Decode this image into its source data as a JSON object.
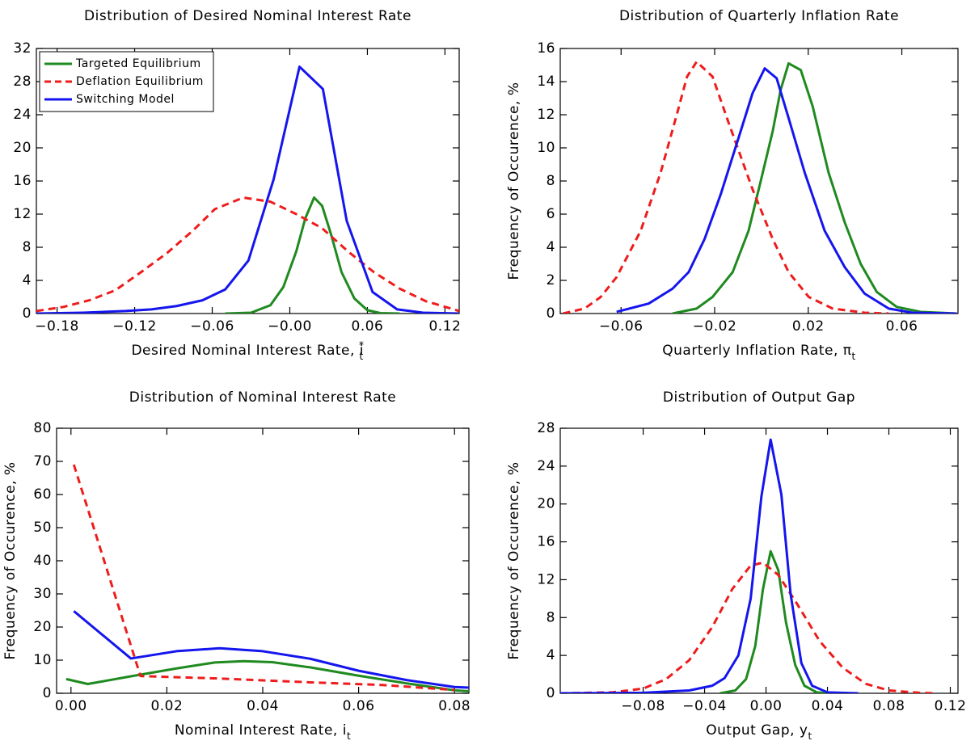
{
  "chart_data": [
    {
      "type": "line",
      "title": "Distribution of Desired Nominal Interest Rate",
      "xlabel": {
        "text": "Desired Nominal Interest Rate, i",
        "sup": "*",
        "sub": "t"
      },
      "xlim": [
        -0.196,
        0.131
      ],
      "xticks": [
        {
          "value": -0.18,
          "label": "−0.18"
        },
        {
          "value": -0.12,
          "label": "−0.12"
        },
        {
          "value": -0.06,
          "label": "−0.06"
        },
        {
          "value": 0,
          "label": "−0.00"
        },
        0.06,
        0.12
      ],
      "ylim": [
        0,
        32
      ],
      "yticks": [
        0,
        4,
        8,
        12,
        16,
        20,
        24,
        28,
        32
      ],
      "legend": "upper left",
      "grid": false,
      "series": [
        {
          "name": "Targeted Equilibrium",
          "color": "#1f8a1f",
          "dash": false,
          "x": [
            -0.05,
            -0.03,
            -0.015,
            -0.005,
            0.005,
            0.012,
            0.0188,
            0.025,
            0.032,
            0.04,
            0.05,
            0.06,
            0.07,
            0.085
          ],
          "values": [
            0,
            0.1,
            1,
            3.2,
            7.5,
            11.5,
            14,
            13,
            9.5,
            5,
            1.8,
            0.4,
            0.05,
            0
          ]
        },
        {
          "name": "Deflation Equilibrium",
          "color": "#ee1c1c",
          "dash": true,
          "x": [
            -0.196,
            -0.175,
            -0.155,
            -0.135,
            -0.115,
            -0.095,
            -0.075,
            -0.058,
            -0.036,
            -0.015,
            0.005,
            0.025,
            0.045,
            0.065,
            0.085,
            0.105,
            0.131
          ],
          "values": [
            0.3,
            0.8,
            1.6,
            2.8,
            5,
            7.3,
            10,
            12.6,
            14,
            13.5,
            12,
            10.3,
            7.5,
            5,
            3,
            1.5,
            0.3
          ]
        },
        {
          "name": "Switching Model",
          "color": "#1515ee",
          "dash": false,
          "x": [
            -0.196,
            -0.16,
            -0.127,
            -0.107,
            -0.0875,
            -0.0675,
            -0.05,
            -0.032,
            -0.0125,
            0.0075,
            0.0256,
            0.044,
            0.064,
            0.083,
            0.103,
            0.131
          ],
          "values": [
            0,
            0.1,
            0.3,
            0.5,
            0.9,
            1.6,
            2.9,
            6.4,
            16.2,
            29.8,
            27.1,
            11.2,
            2.6,
            0.5,
            0.1,
            0
          ]
        }
      ]
    },
    {
      "type": "line",
      "title": "Distribution of Quarterly Inflation Rate",
      "xlabel": {
        "text": "Quarterly Inflation Rate, π",
        "sub": "t"
      },
      "ylabel": "Frequency of Occurence, %",
      "xlim": [
        -0.086,
        0.084
      ],
      "xticks": [
        {
          "value": -0.06,
          "label": "−0.06"
        },
        {
          "value": -0.02,
          "label": "−0.02"
        },
        0.02,
        0.06
      ],
      "ylim": [
        0,
        16
      ],
      "yticks": [
        0,
        2,
        4,
        6,
        8,
        10,
        12,
        14,
        16
      ],
      "grid": false,
      "series": [
        {
          "color": "#1f8a1f",
          "dash": false,
          "x": [
            -0.038,
            -0.0277,
            -0.0209,
            -0.0123,
            -0.0055,
            -0.0003,
            0.0048,
            0.0082,
            0.0116,
            0.0168,
            0.0219,
            0.0287,
            0.0356,
            0.0424,
            0.0493,
            0.0578,
            0.068,
            0.0834
          ],
          "values": [
            0,
            0.3,
            1,
            2.5,
            5,
            8,
            11,
            13.5,
            15.1,
            14.7,
            12.5,
            8.5,
            5.5,
            3,
            1.3,
            0.4,
            0.1,
            0
          ]
        },
        {
          "color": "#ee1c1c",
          "dash": true,
          "x": [
            -0.0848,
            -0.0756,
            -0.0687,
            -0.0619,
            -0.0516,
            -0.0431,
            -0.0362,
            -0.0318,
            -0.0277,
            -0.0209,
            -0.014,
            -0.0038,
            0.0048,
            0.0116,
            0.0202,
            0.0304,
            0.0441,
            0.0544
          ],
          "values": [
            0,
            0.3,
            1,
            2.2,
            5,
            8.5,
            12,
            14.3,
            15.2,
            14.3,
            11.5,
            7.5,
            4.5,
            2.5,
            1,
            0.3,
            0.05,
            0
          ]
        },
        {
          "color": "#1515ee",
          "dash": false,
          "x": [
            -0.0619,
            -0.0482,
            -0.038,
            -0.0311,
            -0.0243,
            -0.0174,
            -0.0089,
            -0.0038,
            0.0014,
            0.0065,
            0.0116,
            0.0185,
            0.027,
            0.0356,
            0.0441,
            0.0544,
            0.0646,
            0.0834
          ],
          "values": [
            0.1,
            0.6,
            1.5,
            2.5,
            4.5,
            7.2,
            11,
            13.3,
            14.8,
            14.2,
            11.8,
            8.5,
            5,
            2.8,
            1.2,
            0.3,
            0.05,
            0
          ]
        }
      ]
    },
    {
      "type": "line",
      "title": "Distribution of Nominal Interest Rate",
      "xlabel": {
        "text": "Nominal Interest Rate, i",
        "sub": "t"
      },
      "ylabel": "Frequency of Occurence, %",
      "xlim": [
        -0.003,
        0.083
      ],
      "xticks": [
        {
          "value": 0,
          "label": "0.00"
        },
        0.02,
        0.04,
        0.06,
        0.08
      ],
      "ylim": [
        0,
        80
      ],
      "yticks": [
        0,
        10,
        20,
        30,
        40,
        50,
        60,
        70,
        80
      ],
      "grid": false,
      "series": [
        {
          "color": "#1f8a1f",
          "dash": false,
          "x": [
            -0.001,
            0.0035,
            0.012,
            0.022,
            0.03,
            0.036,
            0.042,
            0.05,
            0.06,
            0.07,
            0.08,
            0.083
          ],
          "values": [
            4.3,
            2.8,
            5,
            7.5,
            9.3,
            9.7,
            9.4,
            7.8,
            5.3,
            3,
            0.9,
            0.6
          ]
        },
        {
          "color": "#ee1c1c",
          "dash": true,
          "x": [
            0.0006,
            0.0145,
            0.03,
            0.05,
            0.065,
            0.08
          ],
          "values": [
            69,
            5.2,
            4.5,
            3.3,
            2.5,
            1
          ]
        },
        {
          "color": "#1515ee",
          "dash": false,
          "x": [
            0.0006,
            0.0125,
            0.022,
            0.031,
            0.04,
            0.05,
            0.06,
            0.07,
            0.08,
            0.083
          ],
          "values": [
            24.8,
            10.5,
            12.7,
            13.6,
            12.7,
            10.4,
            6.8,
            4,
            1.9,
            1.7
          ]
        }
      ]
    },
    {
      "type": "line",
      "title": "Distribution of Output Gap",
      "xlabel": {
        "text": "Output Gap, y",
        "sub": "t"
      },
      "ylabel": "Frequency of Occurence, %",
      "xlim": [
        -0.134,
        0.125
      ],
      "xticks": [
        {
          "value": -0.08,
          "label": "−0.08"
        },
        {
          "value": -0.04,
          "label": "−0.04"
        },
        {
          "value": 0,
          "label": "0.00"
        },
        0.04,
        0.08,
        0.12
      ],
      "ylim": [
        0,
        28
      ],
      "yticks": [
        0,
        4,
        8,
        12,
        16,
        20,
        24,
        28
      ],
      "grid": false,
      "series": [
        {
          "color": "#1f8a1f",
          "dash": false,
          "x": [
            -0.03,
            -0.02,
            -0.013,
            -0.007,
            -0.002,
            0.003,
            0.008,
            0.013,
            0.019,
            0.025,
            0.033,
            0.04
          ],
          "values": [
            0,
            0.3,
            1.5,
            5,
            11,
            15,
            13,
            7.5,
            3,
            0.8,
            0.1,
            0
          ]
        },
        {
          "color": "#ee1c1c",
          "dash": true,
          "x": [
            -0.134,
            -0.1,
            -0.08,
            -0.065,
            -0.05,
            -0.035,
            -0.022,
            -0.01,
            -0.002,
            0.008,
            0.02,
            0.035,
            0.05,
            0.065,
            0.08,
            0.1,
            0.11
          ],
          "values": [
            0,
            0.1,
            0.5,
            1.5,
            3.5,
            7,
            11,
            13.5,
            13.8,
            12.5,
            9.5,
            5.5,
            2.7,
            1,
            0.3,
            0.05,
            0
          ]
        },
        {
          "color": "#1515ee",
          "dash": false,
          "x": [
            -0.134,
            -0.08,
            -0.05,
            -0.035,
            -0.027,
            -0.018,
            -0.01,
            -0.003,
            0.003,
            0.01,
            0.016,
            0.023,
            0.03,
            0.04,
            0.06
          ],
          "values": [
            0,
            0.05,
            0.3,
            0.8,
            1.6,
            4,
            10,
            20.8,
            26.8,
            21,
            10.5,
            3.2,
            0.8,
            0.1,
            0
          ]
        }
      ]
    }
  ]
}
